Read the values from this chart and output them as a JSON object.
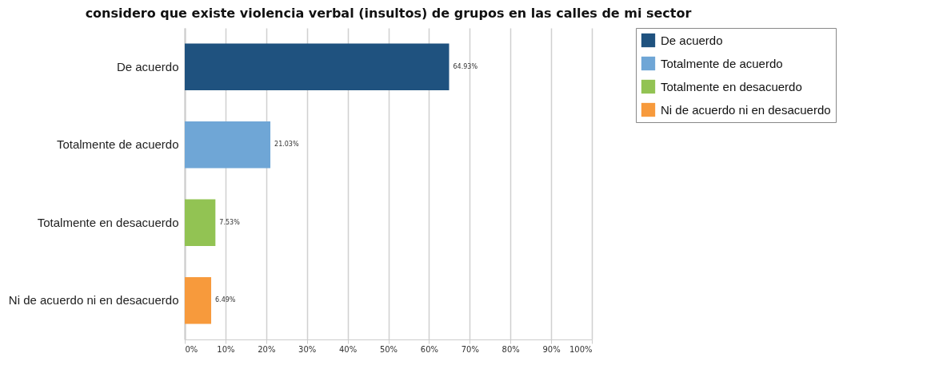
{
  "chart_data": {
    "type": "bar",
    "orientation": "horizontal",
    "title": "considero que existe violencia verbal (insultos) de grupos en las calles de mi sector",
    "categories": [
      "De acuerdo",
      "Totalmente de acuerdo",
      "Totalmente en desacuerdo",
      "Ni de acuerdo ni en desacuerdo"
    ],
    "series": [
      {
        "name": "De acuerdo",
        "color": "#1f527f",
        "values": [
          64.93,
          null,
          null,
          null
        ],
        "value_labels": [
          "64.93%",
          null,
          null,
          null
        ]
      },
      {
        "name": "Totalmente de acuerdo",
        "color": "#6fa6d6",
        "values": [
          null,
          21.03,
          null,
          null
        ],
        "value_labels": [
          null,
          "21.03%",
          null,
          null
        ]
      },
      {
        "name": "Totalmente en desacuerdo",
        "color": "#92c353",
        "values": [
          null,
          null,
          7.53,
          null
        ],
        "value_labels": [
          null,
          null,
          "7.53%",
          null
        ]
      },
      {
        "name": "Ni de acuerdo ni en desacuerdo",
        "color": "#f79a3c",
        "values": [
          null,
          null,
          null,
          6.49
        ],
        "value_labels": [
          null,
          null,
          null,
          "6.49%"
        ]
      }
    ],
    "xlim": [
      0,
      100
    ],
    "xticks": [
      {
        "value": 0,
        "label": "0%"
      },
      {
        "value": 10,
        "label": "10%"
      },
      {
        "value": 20,
        "label": "20%"
      },
      {
        "value": 30,
        "label": "30%"
      },
      {
        "value": 40,
        "label": "40%"
      },
      {
        "value": 50,
        "label": "50%"
      },
      {
        "value": 60,
        "label": "60%"
      },
      {
        "value": 70,
        "label": "70%"
      },
      {
        "value": 80,
        "label": "80%"
      },
      {
        "value": 90,
        "label": "90%"
      },
      {
        "value": 100,
        "label": "100%"
      }
    ],
    "grid": "x",
    "legend": "right"
  }
}
